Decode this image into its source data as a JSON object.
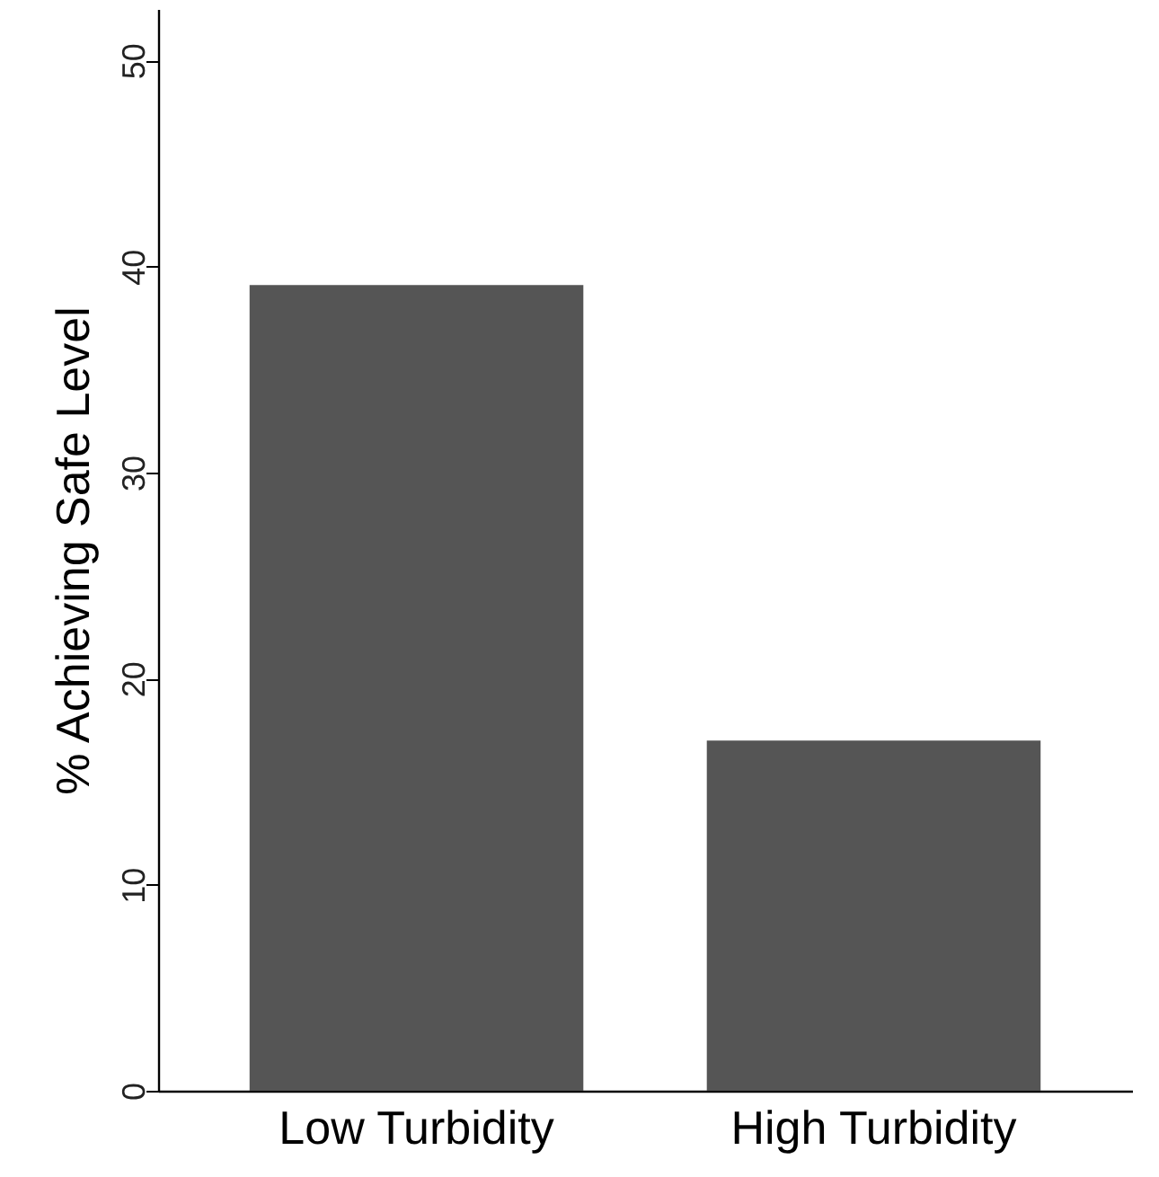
{
  "chart_data": {
    "type": "bar",
    "ylabel": "% Achieving Safe Level",
    "categories": [
      "Low Turbidity",
      "High Turbidity"
    ],
    "values": [
      39.1,
      17.0
    ],
    "color": "#555555",
    "ylim": [
      0,
      52.5
    ],
    "yticks": [
      0,
      10,
      20,
      30,
      40,
      50
    ],
    "grid": false
  }
}
